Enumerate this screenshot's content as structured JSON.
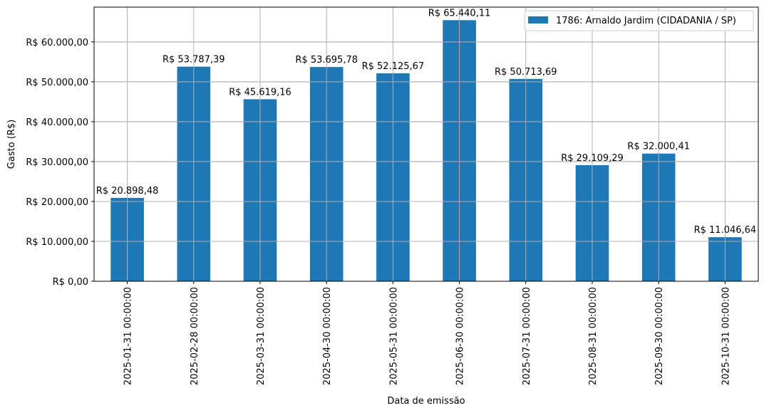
{
  "chart_data": {
    "type": "bar",
    "title": "",
    "xlabel": "Data de emissão",
    "ylabel": "Gasto (R$)",
    "ylim": [
      0,
      68712
    ],
    "grid": true,
    "legend_position": "upper right",
    "bar_color": "#1f77b4",
    "categories": [
      "2025-01-31 00:00:00",
      "2025-02-28 00:00:00",
      "2025-03-31 00:00:00",
      "2025-04-30 00:00:00",
      "2025-05-31 00:00:00",
      "2025-06-30 00:00:00",
      "2025-07-31 00:00:00",
      "2025-08-31 00:00:00",
      "2025-09-30 00:00:00",
      "2025-10-31 00:00:00"
    ],
    "series": [
      {
        "name": "1786: Arnaldo Jardim (CIDADANIA / SP)",
        "values": [
          20898.48,
          53787.39,
          45619.16,
          53695.78,
          52125.67,
          65440.11,
          50713.69,
          29109.29,
          32000.41,
          11046.64
        ],
        "labels": [
          "R$ 20.898,48",
          "R$ 53.787,39",
          "R$ 45.619,16",
          "R$ 53.695,78",
          "R$ 52.125,67",
          "R$ 65.440,11",
          "R$ 50.713,69",
          "R$ 29.109,29",
          "R$ 32.000,41",
          "R$ 11.046,64"
        ]
      }
    ],
    "yticks": [
      0,
      10000,
      20000,
      30000,
      40000,
      50000,
      60000
    ],
    "ytick_labels": [
      "R$ 0,00",
      "R$ 10.000,00",
      "R$ 20.000,00",
      "R$ 30.000,00",
      "R$ 40.000,00",
      "R$ 50.000,00",
      "R$ 60.000,00"
    ]
  }
}
